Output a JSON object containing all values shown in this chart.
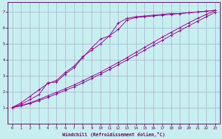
{
  "xlabel": "Windchill (Refroidissement éolien,°C)",
  "bg_color": "#c8eff0",
  "line_color": "#990099",
  "grid_color": "#aaaacc",
  "spine_color": "#660066",
  "xlim": [
    -0.5,
    23.5
  ],
  "ylim": [
    0,
    7.6
  ],
  "yticks": [
    1,
    2,
    3,
    4,
    5,
    6,
    7
  ],
  "xticks": [
    0,
    1,
    2,
    3,
    4,
    5,
    6,
    7,
    8,
    9,
    10,
    11,
    12,
    13,
    14,
    15,
    16,
    17,
    18,
    19,
    20,
    21,
    22,
    23
  ],
  "line1_x": [
    0,
    1,
    2,
    3,
    4,
    5,
    6,
    7,
    8,
    9,
    10,
    11,
    12,
    13,
    14,
    15,
    16,
    17,
    18,
    19,
    20,
    21,
    22,
    23
  ],
  "line1_y": [
    1.0,
    1.2,
    1.5,
    1.8,
    2.55,
    2.6,
    3.1,
    3.5,
    4.15,
    4.75,
    5.3,
    5.5,
    6.3,
    6.6,
    6.7,
    6.75,
    6.8,
    6.85,
    6.9,
    6.9,
    6.95,
    7.0,
    7.05,
    7.1
  ],
  "line2_x": [
    0,
    1,
    2,
    3,
    4,
    5,
    6,
    7,
    8,
    9,
    10,
    11,
    12,
    13,
    14,
    15,
    16,
    17,
    18,
    19,
    20,
    21,
    22,
    23
  ],
  "line2_y": [
    1.0,
    1.3,
    1.7,
    2.1,
    2.5,
    2.7,
    3.2,
    3.6,
    4.2,
    4.6,
    5.0,
    5.5,
    5.9,
    6.5,
    6.65,
    6.7,
    6.75,
    6.8,
    6.85,
    6.9,
    6.95,
    7.0,
    7.05,
    7.1
  ],
  "line3_x": [
    0,
    1,
    2,
    3,
    4,
    5,
    6,
    7,
    8,
    9,
    10,
    11,
    12,
    13,
    14,
    15,
    16,
    17,
    18,
    19,
    20,
    21,
    22,
    23
  ],
  "line3_y": [
    1.0,
    1.13,
    1.3,
    1.5,
    1.73,
    1.95,
    2.18,
    2.42,
    2.68,
    2.95,
    3.22,
    3.52,
    3.82,
    4.13,
    4.46,
    4.78,
    5.1,
    5.42,
    5.72,
    6.02,
    6.32,
    6.6,
    6.85,
    7.08
  ],
  "line4_x": [
    0,
    1,
    2,
    3,
    4,
    5,
    6,
    7,
    8,
    9,
    10,
    11,
    12,
    13,
    14,
    15,
    16,
    17,
    18,
    19,
    20,
    21,
    22,
    23
  ],
  "line4_y": [
    1.0,
    1.1,
    1.25,
    1.43,
    1.63,
    1.85,
    2.07,
    2.3,
    2.55,
    2.82,
    3.1,
    3.38,
    3.68,
    3.98,
    4.29,
    4.6,
    4.91,
    5.22,
    5.53,
    5.83,
    6.13,
    6.42,
    6.7,
    6.98
  ]
}
